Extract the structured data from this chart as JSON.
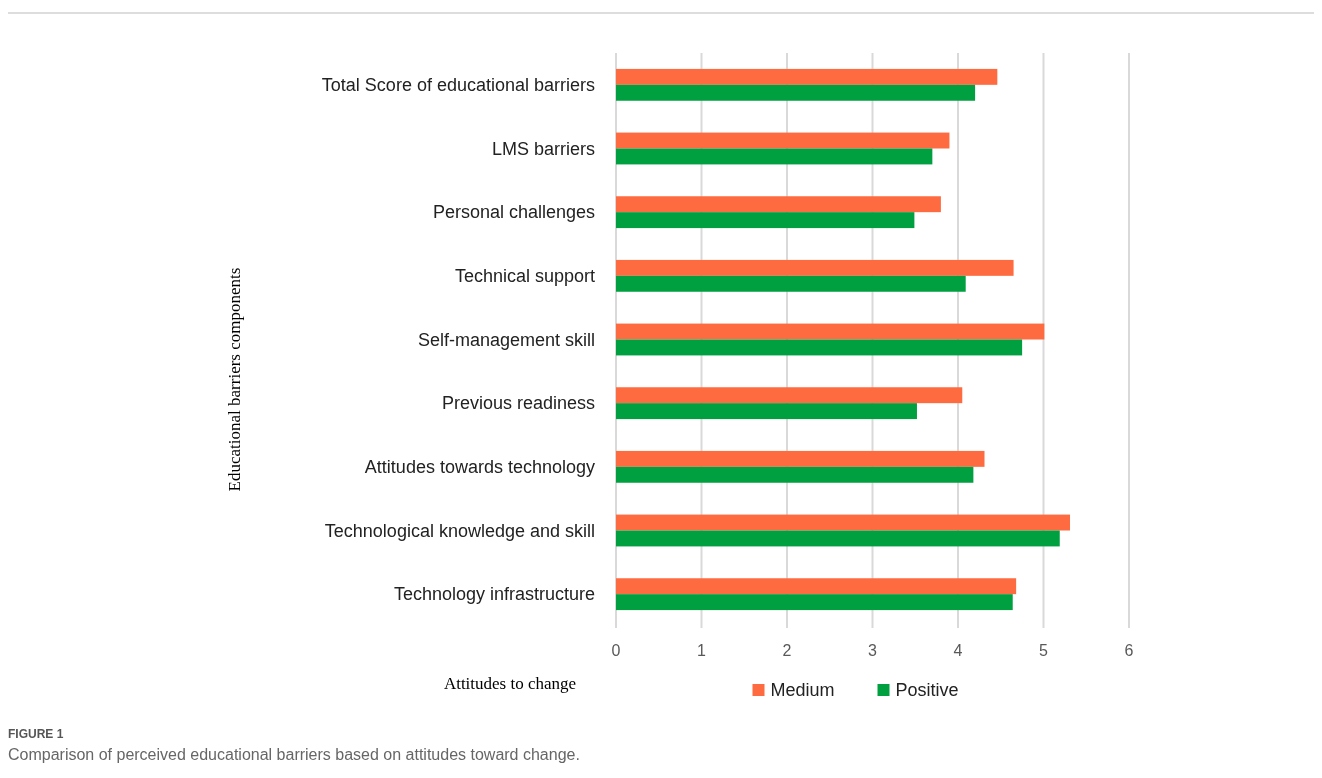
{
  "chart_data": {
    "type": "bar",
    "orientation": "horizontal",
    "categories": [
      "Total Score of educational barriers",
      "LMS barriers",
      "Personal challenges",
      "Technical support",
      "Self-management skill",
      "Previous readiness",
      "Attitudes towards technology",
      "Technological knowledge and skill",
      "Technology infrastructure"
    ],
    "series": [
      {
        "name": "Medium",
        "color": "#ff6b40",
        "values": [
          4.46,
          3.9,
          3.8,
          4.65,
          5.01,
          4.05,
          4.31,
          5.31,
          4.68
        ]
      },
      {
        "name": "Positive",
        "color": "#00a040",
        "values": [
          4.2,
          3.7,
          3.49,
          4.09,
          4.75,
          3.52,
          4.18,
          5.19,
          4.64
        ]
      }
    ],
    "xlim": [
      0,
      6
    ],
    "xticks": [
      0,
      1,
      2,
      3,
      4,
      5,
      6
    ],
    "xlabel": "Attitudes to change",
    "ylabel": "Educational barriers components",
    "grid": "x",
    "legend": "bottom",
    "annotations": [
      "FIGURE 1",
      "Comparison of perceived educational barriers based on attitudes toward change."
    ]
  }
}
